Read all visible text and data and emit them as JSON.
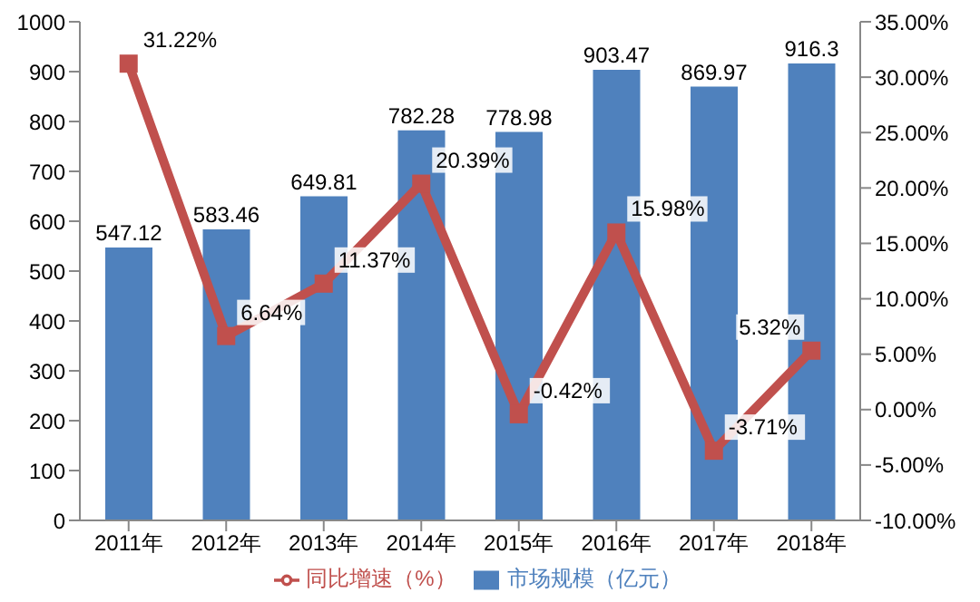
{
  "chart_data": {
    "type": "bar",
    "categories": [
      "2011年",
      "2012年",
      "2013年",
      "2014年",
      "2015年",
      "2016年",
      "2017年",
      "2018年"
    ],
    "series": [
      {
        "name": "市场规模（亿元）",
        "color": "#4f81bd",
        "values": [
          547.12,
          583.46,
          649.81,
          782.28,
          778.98,
          903.47,
          869.97,
          916.3
        ],
        "value_labels": [
          "547.12",
          "583.46",
          "649.81",
          "782.28",
          "778.98",
          "903.47",
          "869.97",
          "916.3"
        ]
      },
      {
        "name": "同比增速（%）",
        "type": "line",
        "axis": "y2",
        "color": "#c0504d",
        "marker": "square",
        "line_style": "solid",
        "values": [
          31.22,
          6.64,
          11.37,
          20.39,
          -0.42,
          15.98,
          -3.71,
          5.32
        ],
        "value_labels": [
          "31.22%",
          "6.64%",
          "11.37%",
          "20.39%",
          "-0.42%",
          "15.98%",
          "-3.71%",
          "5.32%"
        ]
      }
    ],
    "ylim": [
      0,
      1000
    ],
    "yticks": [
      0,
      100,
      200,
      300,
      400,
      500,
      600,
      700,
      800,
      900,
      1000
    ],
    "y2lim": [
      -10,
      35
    ],
    "y2ticks": [
      {
        "value": -10,
        "label": "-10.00%"
      },
      {
        "value": -5,
        "label": "-5.00%"
      },
      {
        "value": 0,
        "label": "0.00%"
      },
      {
        "value": 5,
        "label": "5.00%"
      },
      {
        "value": 10,
        "label": "10.00%"
      },
      {
        "value": 15,
        "label": "15.00%"
      },
      {
        "value": 20,
        "label": "20.00%"
      },
      {
        "value": 25,
        "label": "25.00%"
      },
      {
        "value": 30,
        "label": "30.00%"
      },
      {
        "value": 35,
        "label": "35.00%"
      }
    ],
    "legend": "bottom"
  }
}
